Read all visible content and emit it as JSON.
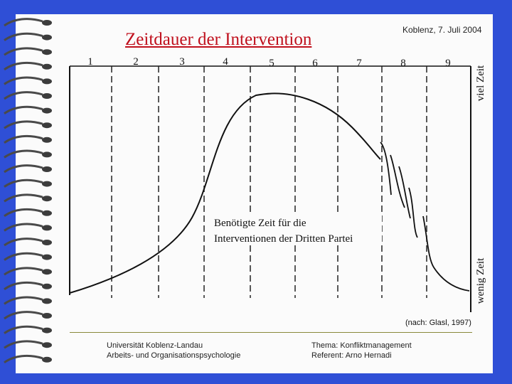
{
  "slide": {
    "title": "Zeitdauer der Intervention",
    "date": "Koblenz, 7. Juli 2004",
    "source": "(nach: Glasl, 1997)"
  },
  "diagram": {
    "stages": [
      "1",
      "2",
      "3",
      "4",
      "5",
      "6",
      "7",
      "8",
      "9"
    ],
    "axis_top": "viel Zeit",
    "axis_bottom": "wenig Zeit",
    "curve_label_line1": "Benötigte Zeit für die",
    "curve_label_line2": "Interventionen der Dritten Partei"
  },
  "footer": {
    "left_line1": "Universität Koblenz-Landau",
    "left_line2": "Arbeits- und Organisationspsychologie",
    "right_line1": "Thema: Konfliktmanagement",
    "right_line2": "Referent: Arno Hernadi"
  },
  "colors": {
    "background": "#2f4fd6",
    "title": "#c0101d",
    "slide": "#fbfbfb"
  }
}
